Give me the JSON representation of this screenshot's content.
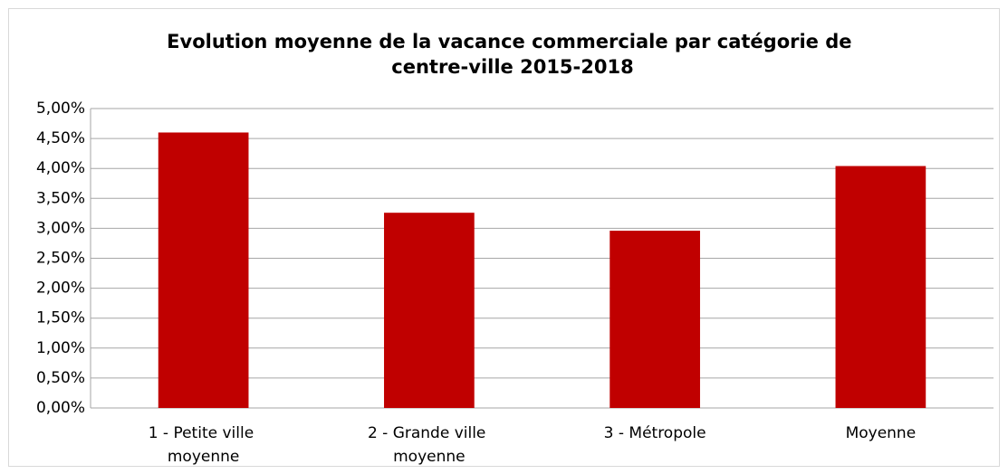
{
  "chart_data": {
    "type": "bar",
    "title": "Evolution moyenne de la vacance commerciale par catégorie de centre-ville 2015-2018",
    "categories": [
      "1 - Petite ville moyenne",
      "2 - Grande ville moyenne",
      "3 - Métropole",
      "Moyenne"
    ],
    "values": [
      4.6,
      3.26,
      2.96,
      4.04
    ],
    "color": "#c00000",
    "ylim": [
      0,
      5
    ],
    "yticks": [
      {
        "value": 0,
        "label": "0,00%"
      },
      {
        "value": 0.5,
        "label": "0,50%"
      },
      {
        "value": 1,
        "label": "1,00%"
      },
      {
        "value": 1.5,
        "label": "1,50%"
      },
      {
        "value": 2,
        "label": "2,00%"
      },
      {
        "value": 2.5,
        "label": "2,50%"
      },
      {
        "value": 3,
        "label": "3,00%"
      },
      {
        "value": 3.5,
        "label": "3,50%"
      },
      {
        "value": 4,
        "label": "4,00%"
      },
      {
        "value": 4.5,
        "label": "4,50%"
      },
      {
        "value": 5,
        "label": "5,00%"
      }
    ],
    "grid": true
  }
}
